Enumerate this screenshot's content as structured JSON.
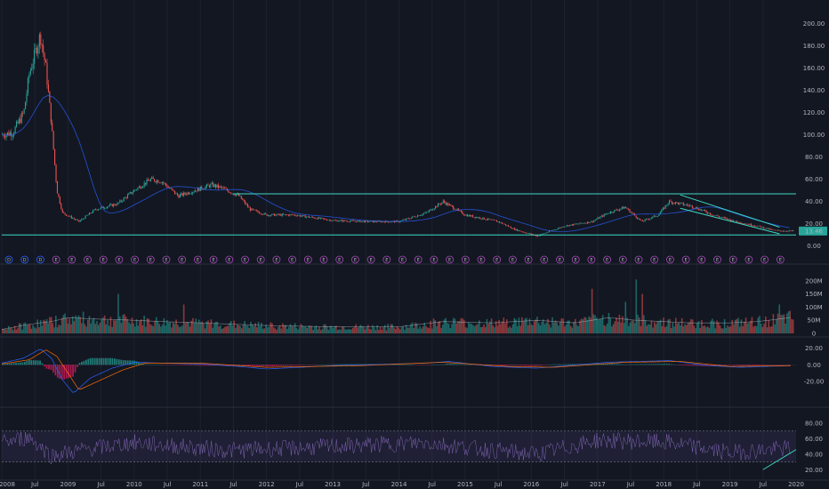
{
  "colors": {
    "background": "#131722",
    "grid": "#1e2230",
    "separator": "#2a2e39",
    "text": "#b2b5be",
    "up": "#26a69a",
    "down": "#ef5350",
    "ma": "#2962ff",
    "trendline": "#3bd9c1",
    "macd_line": "#2962ff",
    "signal_line": "#ff6d00",
    "hist_pos": "#26a69a",
    "hist_neg": "#e91e63",
    "rsi_band": "#7e57c2",
    "price_badge": "#26a69a",
    "volume_up": "#26a69a",
    "volume_down": "#ef5350"
  },
  "price_axis": {
    "ticks": [
      "200.00",
      "180.00",
      "160.00",
      "140.00",
      "120.00",
      "100.00",
      "80.00",
      "60.00",
      "40.00",
      "20.00",
      "0.00"
    ],
    "current_price": "13.46"
  },
  "volume_axis": {
    "ticks": [
      "200M",
      "150M",
      "100M",
      "50M",
      "0"
    ]
  },
  "macd_axis": {
    "ticks": [
      "20.00",
      "0.00",
      "-20.00"
    ]
  },
  "rsi_axis": {
    "ticks": [
      "80.00",
      "60.00",
      "40.00",
      "20.00"
    ]
  },
  "time_axis": {
    "labels": [
      "2008",
      "Jul",
      "2009",
      "Jul",
      "2010",
      "Jul",
      "2011",
      "Jul",
      "2012",
      "Jul",
      "2013",
      "Jul",
      "2014",
      "Jul",
      "2015",
      "Jul",
      "2016",
      "Jul",
      "2017",
      "Jul",
      "2018",
      "Jul",
      "2019",
      "Jul",
      "2020"
    ]
  },
  "events": {
    "items": [
      "D",
      "D",
      "D",
      "E",
      "E",
      "E",
      "E",
      "E",
      "E",
      "E",
      "E",
      "E",
      "E",
      "E",
      "E",
      "E",
      "E",
      "E",
      "E",
      "E",
      "E",
      "E",
      "E",
      "E",
      "E",
      "E",
      "E",
      "E",
      "E",
      "E",
      "E",
      "E",
      "E",
      "E",
      "E",
      "E",
      "E",
      "E",
      "E",
      "E",
      "E",
      "E",
      "E",
      "E",
      "E",
      "E",
      "E",
      "E",
      "E",
      "E"
    ]
  },
  "chart_data": [
    {
      "type": "candlestick",
      "pane": "price",
      "x_range": [
        "2008-01",
        "2020-01"
      ],
      "ylim": [
        -5,
        210
      ],
      "current_value": 13.46,
      "price_path": [
        [
          "2008-01",
          100
        ],
        [
          "2008-03",
          102
        ],
        [
          "2008-05",
          120
        ],
        [
          "2008-06",
          155
        ],
        [
          "2008-08",
          190
        ],
        [
          "2008-09",
          160
        ],
        [
          "2008-10",
          110
        ],
        [
          "2008-11",
          50
        ],
        [
          "2008-12",
          30
        ],
        [
          "2009-03",
          22
        ],
        [
          "2009-06",
          33
        ],
        [
          "2009-10",
          38
        ],
        [
          "2010-01",
          50
        ],
        [
          "2010-04",
          60
        ],
        [
          "2010-06",
          58
        ],
        [
          "2010-09",
          45
        ],
        [
          "2011-03",
          55
        ],
        [
          "2011-05",
          52
        ],
        [
          "2011-08",
          45
        ],
        [
          "2011-10",
          33
        ],
        [
          "2012-01",
          28
        ],
        [
          "2012-06",
          28
        ],
        [
          "2013-01",
          23
        ],
        [
          "2013-07",
          22
        ],
        [
          "2014-01",
          22
        ],
        [
          "2014-06",
          30
        ],
        [
          "2014-09",
          40
        ],
        [
          "2015-01",
          28
        ],
        [
          "2015-07",
          22
        ],
        [
          "2015-10",
          15
        ],
        [
          "2016-02",
          9
        ],
        [
          "2016-07",
          18
        ],
        [
          "2016-12",
          22
        ],
        [
          "2017-03",
          30
        ],
        [
          "2017-06",
          35
        ],
        [
          "2017-09",
          22
        ],
        [
          "2017-12",
          28
        ],
        [
          "2018-02",
          40
        ],
        [
          "2018-06",
          36
        ],
        [
          "2018-10",
          28
        ],
        [
          "2019-02",
          22
        ],
        [
          "2019-06",
          18
        ],
        [
          "2019-09",
          14
        ],
        [
          "2019-12",
          13.46
        ]
      ],
      "trendlines": [
        {
          "from": [
            "2011-07",
            47
          ],
          "to": [
            "2020-01",
            47
          ]
        },
        {
          "from": [
            "2018-04",
            46
          ],
          "to": [
            "2019-10",
            17
          ]
        },
        {
          "from": [
            "2018-04",
            34
          ],
          "to": [
            "2019-10",
            11
          ]
        },
        {
          "from": [
            "2008-01",
            10
          ],
          "to": [
            "2020-01",
            10
          ]
        }
      ]
    },
    {
      "type": "bar",
      "pane": "volume",
      "ylim": [
        0,
        230
      ],
      "unit": "M",
      "level_path": [
        [
          "2008-01",
          15
        ],
        [
          "2008-06",
          35
        ],
        [
          "2008-10",
          45
        ],
        [
          "2009-01",
          60
        ],
        [
          "2009-06",
          55
        ],
        [
          "2010-01",
          50
        ],
        [
          "2010-06",
          45
        ],
        [
          "2011-01",
          40
        ],
        [
          "2012-01",
          30
        ],
        [
          "2013-01",
          25
        ],
        [
          "2014-01",
          25
        ],
        [
          "2014-09",
          45
        ],
        [
          "2015-06",
          40
        ],
        [
          "2016-02",
          50
        ],
        [
          "2016-09",
          40
        ],
        [
          "2017-03",
          60
        ],
        [
          "2017-08",
          50
        ],
        [
          "2018-06",
          40
        ],
        [
          "2019-01",
          40
        ],
        [
          "2019-06",
          45
        ],
        [
          "2019-12",
          60
        ]
      ],
      "spikes": [
        [
          "2009-10",
          150
        ],
        [
          "2010-10",
          110
        ],
        [
          "2016-12",
          170
        ],
        [
          "2017-06",
          120
        ],
        [
          "2017-08",
          205
        ],
        [
          "2017-09",
          150
        ],
        [
          "2019-10",
          110
        ]
      ]
    },
    {
      "type": "line",
      "pane": "macd",
      "ylim": [
        -40,
        30
      ],
      "series": [
        {
          "role": "macd",
          "points": [
            [
              "2008-01",
              2
            ],
            [
              "2008-05",
              8
            ],
            [
              "2008-08",
              19
            ],
            [
              "2008-10",
              8
            ],
            [
              "2008-12",
              -18
            ],
            [
              "2009-02",
              -34
            ],
            [
              "2009-05",
              -16
            ],
            [
              "2009-09",
              -4
            ],
            [
              "2010-01",
              3
            ],
            [
              "2010-06",
              2
            ],
            [
              "2011-01",
              1
            ],
            [
              "2011-08",
              -2
            ],
            [
              "2012-01",
              -5
            ],
            [
              "2013-01",
              -1
            ],
            [
              "2014-06",
              2
            ],
            [
              "2014-10",
              4
            ],
            [
              "2015-06",
              -2
            ],
            [
              "2016-02",
              -4
            ],
            [
              "2017-03",
              3
            ],
            [
              "2018-02",
              5
            ],
            [
              "2018-09",
              -1
            ],
            [
              "2019-03",
              -3
            ],
            [
              "2019-12",
              -1
            ]
          ]
        },
        {
          "role": "signal",
          "points": [
            [
              "2008-01",
              1
            ],
            [
              "2008-06",
              6
            ],
            [
              "2008-09",
              18
            ],
            [
              "2008-11",
              10
            ],
            [
              "2009-01",
              -10
            ],
            [
              "2009-03",
              -30
            ],
            [
              "2009-07",
              -18
            ],
            [
              "2009-11",
              -6
            ],
            [
              "2010-03",
              2
            ],
            [
              "2011-01",
              2
            ],
            [
              "2012-01",
              -3
            ],
            [
              "2013-06",
              -1
            ],
            [
              "2014-09",
              3
            ],
            [
              "2015-09",
              -2
            ],
            [
              "2016-05",
              -3
            ],
            [
              "2017-06",
              3
            ],
            [
              "2018-04",
              4
            ],
            [
              "2019-01",
              -2
            ],
            [
              "2019-12",
              -1
            ]
          ]
        }
      ]
    },
    {
      "type": "line",
      "pane": "rsi",
      "ylim": [
        10,
        95
      ],
      "bands": [
        30,
        70
      ],
      "level_path": [
        [
          "2008-01",
          55
        ],
        [
          "2008-06",
          62
        ],
        [
          "2008-10",
          38
        ],
        [
          "2009-03",
          45
        ],
        [
          "2010-01",
          55
        ],
        [
          "2011-06",
          45
        ],
        [
          "2012-06",
          48
        ],
        [
          "2014-06",
          55
        ],
        [
          "2015-06",
          45
        ],
        [
          "2016-02",
          40
        ],
        [
          "2017-01",
          58
        ],
        [
          "2018-02",
          55
        ],
        [
          "2019-01",
          42
        ],
        [
          "2019-12",
          48
        ]
      ],
      "trendline": {
        "from": [
          "2019-07",
          20
        ],
        "to": [
          "2020-01",
          46
        ]
      }
    }
  ]
}
